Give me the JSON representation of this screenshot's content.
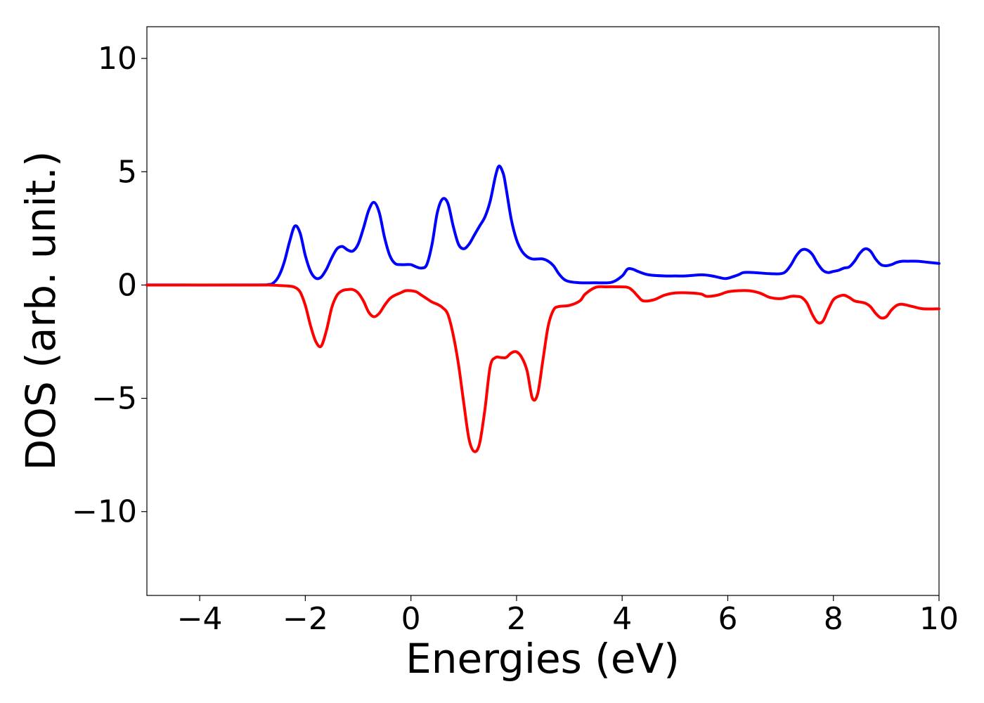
{
  "chart_data": {
    "type": "line",
    "title": "",
    "xlabel": "Energies (eV)",
    "ylabel": "DOS (arb. unit.)",
    "xlim": [
      -5,
      10
    ],
    "ylim": [
      -13.7,
      11.4
    ],
    "xticks": [
      -4,
      -2,
      0,
      2,
      4,
      6,
      8,
      10
    ],
    "yticks": [
      -10,
      -5,
      0,
      5,
      10
    ],
    "xtick_labels": [
      "−4",
      "−2",
      "0",
      "2",
      "4",
      "6",
      "8",
      "10"
    ],
    "ytick_labels": [
      "−10",
      "−5",
      "0",
      "5",
      "10"
    ],
    "grid": false,
    "legend": "none",
    "series": [
      {
        "color": "#0000ff",
        "x": [
          -5.0,
          -3.0,
          -2.7,
          -2.6,
          -2.5,
          -2.4,
          -2.3,
          -2.2,
          -2.1,
          -2.0,
          -1.9,
          -1.8,
          -1.7,
          -1.6,
          -1.5,
          -1.4,
          -1.3,
          -1.2,
          -1.1,
          -1.0,
          -0.9,
          -0.8,
          -0.7,
          -0.6,
          -0.5,
          -0.4,
          -0.3,
          -0.2,
          -0.1,
          0.0,
          0.1,
          0.2,
          0.3,
          0.4,
          0.5,
          0.6,
          0.7,
          0.8,
          0.9,
          1.0,
          1.1,
          1.2,
          1.3,
          1.4,
          1.5,
          1.6,
          1.67,
          1.75,
          1.8,
          1.9,
          2.0,
          2.1,
          2.2,
          2.3,
          2.4,
          2.5,
          2.6,
          2.7,
          2.8,
          2.9,
          3.0,
          3.2,
          3.5,
          3.8,
          4.0,
          4.1,
          4.2,
          4.3,
          4.5,
          4.8,
          5.0,
          5.2,
          5.5,
          5.7,
          5.9,
          6.0,
          6.2,
          6.3,
          6.5,
          6.8,
          7.0,
          7.1,
          7.2,
          7.3,
          7.4,
          7.5,
          7.6,
          7.7,
          7.8,
          7.9,
          8.0,
          8.1,
          8.2,
          8.3,
          8.4,
          8.5,
          8.6,
          8.7,
          8.8,
          8.9,
          9.0,
          9.1,
          9.2,
          9.3,
          9.4,
          9.6,
          9.8,
          10.0
        ],
        "values": [
          0,
          0,
          0.02,
          0.1,
          0.4,
          1.0,
          1.9,
          2.6,
          2.3,
          1.3,
          0.6,
          0.3,
          0.35,
          0.7,
          1.2,
          1.6,
          1.7,
          1.55,
          1.5,
          1.8,
          2.5,
          3.3,
          3.65,
          3.2,
          2.1,
          1.3,
          0.95,
          0.9,
          0.9,
          0.9,
          0.8,
          0.75,
          0.9,
          1.8,
          3.2,
          3.8,
          3.6,
          2.6,
          1.8,
          1.6,
          1.8,
          2.2,
          2.6,
          3.0,
          3.7,
          4.8,
          5.25,
          4.9,
          4.3,
          2.9,
          2.0,
          1.5,
          1.25,
          1.15,
          1.15,
          1.15,
          1.05,
          0.85,
          0.5,
          0.25,
          0.15,
          0.1,
          0.1,
          0.12,
          0.4,
          0.7,
          0.7,
          0.6,
          0.45,
          0.4,
          0.4,
          0.4,
          0.45,
          0.4,
          0.3,
          0.3,
          0.45,
          0.55,
          0.55,
          0.5,
          0.5,
          0.6,
          0.9,
          1.3,
          1.55,
          1.55,
          1.35,
          0.95,
          0.65,
          0.55,
          0.6,
          0.65,
          0.75,
          0.8,
          1.05,
          1.4,
          1.6,
          1.5,
          1.15,
          0.9,
          0.85,
          0.9,
          1.0,
          1.05,
          1.05,
          1.05,
          1.0,
          0.95
        ]
      },
      {
        "color": "#ff0000",
        "x": [
          -5.0,
          -3.0,
          -2.7,
          -2.5,
          -2.3,
          -2.2,
          -2.1,
          -2.0,
          -1.9,
          -1.8,
          -1.7,
          -1.6,
          -1.5,
          -1.4,
          -1.3,
          -1.2,
          -1.1,
          -1.0,
          -0.9,
          -0.8,
          -0.7,
          -0.6,
          -0.5,
          -0.4,
          -0.3,
          -0.2,
          -0.1,
          0.0,
          0.1,
          0.2,
          0.3,
          0.4,
          0.5,
          0.6,
          0.7,
          0.8,
          0.9,
          1.0,
          1.1,
          1.2,
          1.3,
          1.4,
          1.5,
          1.6,
          1.7,
          1.8,
          1.9,
          2.0,
          2.1,
          2.2,
          2.3,
          2.4,
          2.5,
          2.6,
          2.7,
          2.8,
          3.0,
          3.2,
          3.3,
          3.5,
          3.7,
          3.9,
          4.1,
          4.2,
          4.3,
          4.4,
          4.6,
          4.8,
          5.0,
          5.3,
          5.5,
          5.6,
          5.8,
          6.0,
          6.2,
          6.4,
          6.6,
          6.8,
          7.0,
          7.2,
          7.3,
          7.4,
          7.5,
          7.6,
          7.7,
          7.8,
          7.9,
          8.0,
          8.1,
          8.2,
          8.3,
          8.4,
          8.5,
          8.6,
          8.7,
          8.8,
          8.9,
          9.0,
          9.1,
          9.2,
          9.3,
          9.5,
          9.7,
          10.0
        ],
        "values": [
          0,
          0,
          0,
          -0.02,
          -0.05,
          -0.1,
          -0.3,
          -0.9,
          -1.8,
          -2.5,
          -2.7,
          -2.0,
          -1.0,
          -0.45,
          -0.25,
          -0.2,
          -0.2,
          -0.35,
          -0.7,
          -1.2,
          -1.4,
          -1.25,
          -0.9,
          -0.6,
          -0.45,
          -0.35,
          -0.25,
          -0.25,
          -0.3,
          -0.45,
          -0.6,
          -0.75,
          -0.85,
          -1.0,
          -1.3,
          -2.2,
          -3.5,
          -5.2,
          -6.8,
          -7.35,
          -7.0,
          -5.5,
          -3.6,
          -3.2,
          -3.2,
          -3.2,
          -3.0,
          -2.95,
          -3.2,
          -3.8,
          -5.0,
          -4.8,
          -3.3,
          -1.8,
          -1.1,
          -0.95,
          -0.9,
          -0.7,
          -0.4,
          -0.1,
          -0.08,
          -0.08,
          -0.1,
          -0.25,
          -0.5,
          -0.7,
          -0.65,
          -0.45,
          -0.35,
          -0.35,
          -0.4,
          -0.5,
          -0.45,
          -0.3,
          -0.25,
          -0.25,
          -0.35,
          -0.55,
          -0.6,
          -0.5,
          -0.5,
          -0.55,
          -0.8,
          -1.3,
          -1.65,
          -1.6,
          -1.1,
          -0.65,
          -0.5,
          -0.45,
          -0.55,
          -0.7,
          -0.75,
          -0.8,
          -0.95,
          -1.25,
          -1.45,
          -1.4,
          -1.1,
          -0.9,
          -0.85,
          -0.95,
          -1.05,
          -1.05
        ]
      }
    ]
  }
}
